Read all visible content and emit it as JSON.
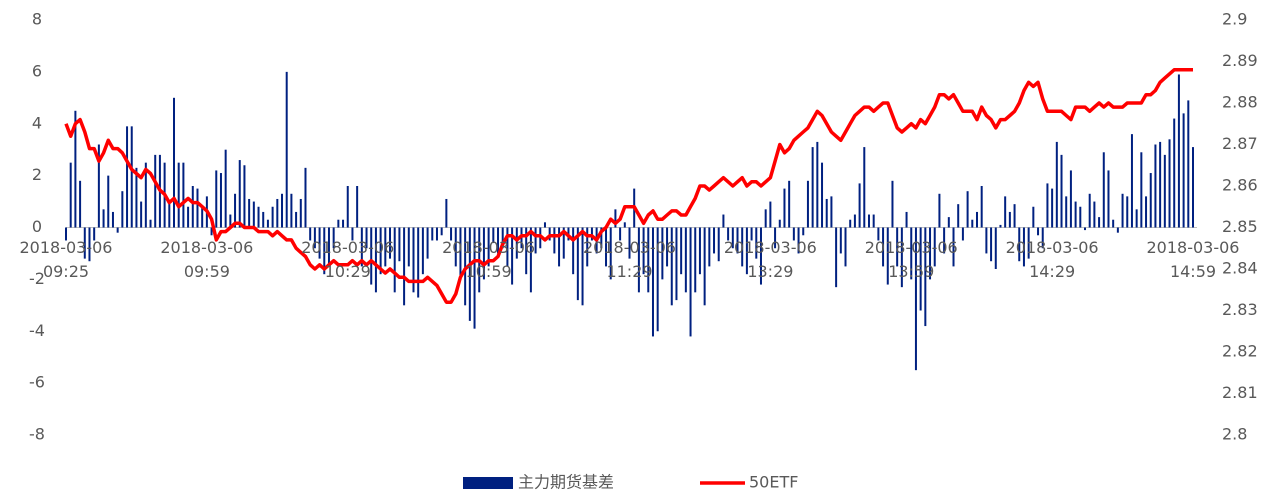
{
  "chart_data": {
    "type": "bar-line",
    "categories": [
      "2018-03-06 09:25",
      null,
      null,
      null,
      null,
      null,
      null,
      null,
      null,
      null,
      null,
      null,
      null,
      null,
      null,
      null,
      null,
      null,
      null,
      null,
      null,
      null,
      null,
      null,
      null,
      null,
      null,
      null,
      null,
      null,
      "2018-03-06 09:59",
      null,
      null,
      null,
      null,
      null,
      null,
      null,
      null,
      null,
      null,
      null,
      null,
      null,
      null,
      null,
      null,
      null,
      null,
      null,
      null,
      null,
      null,
      null,
      null,
      null,
      null,
      null,
      null,
      null,
      "2018-03-06 10:29",
      null,
      null,
      null,
      null,
      null,
      null,
      null,
      null,
      null,
      null,
      null,
      null,
      null,
      null,
      null,
      null,
      null,
      null,
      null,
      null,
      null,
      null,
      null,
      null,
      null,
      null,
      null,
      null,
      null,
      "2018-03-06 10:59",
      null,
      null,
      null,
      null,
      null,
      null,
      null,
      null,
      null,
      null,
      null,
      null,
      null,
      null,
      null,
      null,
      null,
      null,
      null,
      null,
      null,
      null,
      null,
      null,
      null,
      null,
      null,
      null,
      null,
      "2018-03-06 11:29",
      null,
      null,
      null,
      null,
      null,
      null,
      null,
      null,
      null,
      null,
      null,
      null,
      null,
      null,
      null,
      null,
      null,
      null,
      null,
      null,
      null,
      null,
      null,
      null,
      null,
      null,
      null,
      null,
      null,
      "2018-03-06 13:29",
      null,
      null,
      null,
      null,
      null,
      null,
      null,
      null,
      null,
      null,
      null,
      null,
      null,
      null,
      null,
      null,
      null,
      null,
      null,
      null,
      null,
      null,
      null,
      null,
      null,
      null,
      null,
      null,
      null,
      "2018-03-06 13:59",
      null,
      null,
      null,
      null,
      null,
      null,
      null,
      null,
      null,
      null,
      null,
      null,
      null,
      null,
      null,
      null,
      null,
      null,
      null,
      null,
      null,
      null,
      null,
      null,
      null,
      null,
      null,
      null,
      null,
      "2018-03-06 14:29",
      null,
      null,
      null,
      null,
      null,
      null,
      null,
      null,
      null,
      null,
      null,
      null,
      null,
      null,
      null,
      null,
      null,
      null,
      null,
      null,
      null,
      null,
      null,
      null,
      null,
      null,
      null,
      null,
      null,
      "2018-03-06 14:59"
    ],
    "series": [
      {
        "name": "主力期货基差",
        "color": "#002080",
        "kind": "bar",
        "values": [
          -0.5,
          2.5,
          4.5,
          1.8,
          -1.2,
          -1.3,
          -0.5,
          3.2,
          0.7,
          2,
          0.6,
          -0.2,
          1.4,
          3.9,
          3.9,
          2.3,
          1.0,
          2.5,
          0.3,
          2.8,
          2.8,
          2.5,
          1.0,
          5.0,
          2.5,
          2.5,
          0.8,
          1.6,
          1.5,
          0.8,
          1.2,
          -0.3,
          2.2,
          2.1,
          3.0,
          0.5,
          1.3,
          2.6,
          2.4,
          1.1,
          1.0,
          0.8,
          0.6,
          0.3,
          0.8,
          1.1,
          1.3,
          6.0,
          1.3,
          0.6,
          1.1,
          2.3,
          -0.5,
          -0.8,
          -1.2,
          -1.8,
          -1.5,
          -0.8,
          0.3,
          0.3,
          1.6,
          -0.5,
          1.6,
          -1.5,
          -0.8,
          -2.2,
          -2.5,
          -1.8,
          -1.5,
          -1.2,
          -2.5,
          -1.3,
          -3.0,
          -1.5,
          -2.5,
          -2.7,
          -1.8,
          -1.2,
          -0.5,
          -0.5,
          -0.3,
          1.1,
          -0.5,
          -1.5,
          -2.0,
          -3.0,
          -3.6,
          -3.9,
          -2.5,
          -2.0,
          -1.5,
          -0.6,
          -1.0,
          -0.8,
          -1.5,
          -2.2,
          -1.2,
          -0.8,
          -1.8,
          -2.5,
          -1.0,
          -0.8,
          0.2,
          -0.5,
          -1.0,
          -1.5,
          -1.2,
          -0.5,
          -1.8,
          -2.8,
          -3.0,
          -1.5,
          -0.5,
          -1.0,
          -0.8,
          -1.5,
          -2.0,
          0.7,
          -0.5,
          0.2,
          -1.2,
          1.5,
          -2.5,
          -1.8,
          -2.5,
          -4.2,
          -4.0,
          -2.0,
          -1.5,
          -3.0,
          -2.8,
          -1.8,
          -2.5,
          -4.2,
          -2.5,
          -1.8,
          -3.0,
          -1.5,
          -1.0,
          -1.3,
          0.5,
          -0.5,
          -0.8,
          -1.0,
          -1.5,
          -1.8,
          -0.5,
          -1.2,
          -2.2,
          0.7,
          1.0,
          -0.8,
          0.3,
          1.5,
          1.8,
          -0.5,
          -1.0,
          -0.3,
          1.8,
          3.1,
          3.3,
          2.5,
          1.1,
          1.2,
          -2.3,
          -1.0,
          -1.5,
          0.3,
          0.5,
          1.7,
          3.1,
          0.5,
          0.5,
          -0.5,
          -1.5,
          -2.2,
          1.8,
          -1.5,
          -2.3,
          0.6,
          -2.0,
          -5.5,
          -3.2,
          -3.8,
          -2.0,
          -1.5,
          1.3,
          -1.0,
          0.4,
          -1.5,
          0.9,
          -0.5,
          1.4,
          0.3,
          0.6,
          1.6,
          -1.0,
          -1.3,
          -1.6,
          0.1,
          1.2,
          0.6,
          0.9,
          -1.3,
          -1.5,
          -1.2,
          0.8,
          -0.3,
          -0.8,
          1.7,
          1.5,
          3.3,
          2.8,
          1.2,
          2.2,
          1.0,
          0.8,
          -0.1,
          1.3,
          1.0,
          0.4,
          2.9,
          2.2,
          0.3,
          -0.2,
          1.3,
          1.2,
          3.6,
          0.7,
          2.9,
          1.2,
          2.1,
          3.2,
          3.3,
          2.8,
          3.4,
          4.2,
          5.9,
          4.4,
          4.9,
          3.1
        ]
      },
      {
        "name": "50ETF",
        "color": "#ff0000",
        "kind": "line",
        "axis": "y2",
        "values": [
          2.875,
          2.872,
          2.875,
          2.876,
          2.873,
          2.869,
          2.869,
          2.866,
          2.868,
          2.871,
          2.869,
          2.869,
          2.868,
          2.866,
          2.864,
          2.863,
          2.862,
          2.864,
          2.863,
          2.861,
          2.859,
          2.858,
          2.856,
          2.857,
          2.855,
          2.856,
          2.857,
          2.856,
          2.856,
          2.855,
          2.854,
          2.852,
          2.847,
          2.849,
          2.849,
          2.85,
          2.851,
          2.851,
          2.85,
          2.85,
          2.85,
          2.849,
          2.849,
          2.849,
          2.848,
          2.849,
          2.848,
          2.847,
          2.847,
          2.845,
          2.844,
          2.843,
          2.841,
          2.84,
          2.841,
          2.84,
          2.841,
          2.842,
          2.841,
          2.841,
          2.841,
          2.842,
          2.841,
          2.842,
          2.841,
          2.842,
          2.841,
          2.84,
          2.839,
          2.84,
          2.839,
          2.838,
          2.838,
          2.837,
          2.837,
          2.837,
          2.837,
          2.838,
          2.837,
          2.836,
          2.834,
          2.832,
          2.832,
          2.834,
          2.838,
          2.84,
          2.841,
          2.842,
          2.842,
          2.841,
          2.842,
          2.842,
          2.843,
          2.846,
          2.848,
          2.848,
          2.847,
          2.848,
          2.848,
          2.849,
          2.848,
          2.848,
          2.847,
          2.848,
          2.848,
          2.848,
          2.849,
          2.848,
          2.847,
          2.848,
          2.849,
          2.848,
          2.848,
          2.847,
          2.849,
          2.85,
          2.852,
          2.851,
          2.852,
          2.855,
          2.855,
          2.855,
          2.853,
          2.851,
          2.853,
          2.854,
          2.852,
          2.852,
          2.853,
          2.854,
          2.854,
          2.853,
          2.853,
          2.855,
          2.857,
          2.86,
          2.86,
          2.859,
          2.86,
          2.861,
          2.862,
          2.861,
          2.86,
          2.861,
          2.862,
          2.86,
          2.861,
          2.861,
          2.86,
          2.861,
          2.862,
          2.866,
          2.87,
          2.868,
          2.869,
          2.871,
          2.872,
          2.873,
          2.874,
          2.876,
          2.878,
          2.877,
          2.875,
          2.873,
          2.872,
          2.871,
          2.873,
          2.875,
          2.877,
          2.878,
          2.879,
          2.879,
          2.878,
          2.879,
          2.88,
          2.88,
          2.877,
          2.874,
          2.873,
          2.874,
          2.875,
          2.874,
          2.876,
          2.875,
          2.877,
          2.879,
          2.882,
          2.882,
          2.881,
          2.882,
          2.88,
          2.878,
          2.878,
          2.878,
          2.876,
          2.879,
          2.877,
          2.876,
          2.874,
          2.876,
          2.876,
          2.877,
          2.878,
          2.88,
          2.883,
          2.885,
          2.884,
          2.885,
          2.881,
          2.878,
          2.878,
          2.878,
          2.878,
          2.877,
          2.876,
          2.879,
          2.879,
          2.879,
          2.878,
          2.879,
          2.88,
          2.879,
          2.88,
          2.879,
          2.879,
          2.879,
          2.88,
          2.88,
          2.88,
          2.88,
          2.882,
          2.882,
          2.883,
          2.885,
          2.886,
          2.887,
          2.888,
          2.888,
          2.888,
          2.888,
          2.888
        ]
      }
    ],
    "ylim": [
      -8,
      8
    ],
    "yticks": [
      -8,
      -6,
      -4,
      -2,
      0,
      2,
      4,
      6,
      8
    ],
    "y2lim": [
      2.8,
      2.9
    ],
    "y2ticks": [
      2.8,
      2.81,
      2.82,
      2.83,
      2.84,
      2.85,
      2.86,
      2.87,
      2.88,
      2.89,
      2.9
    ],
    "legend": "bottom"
  }
}
